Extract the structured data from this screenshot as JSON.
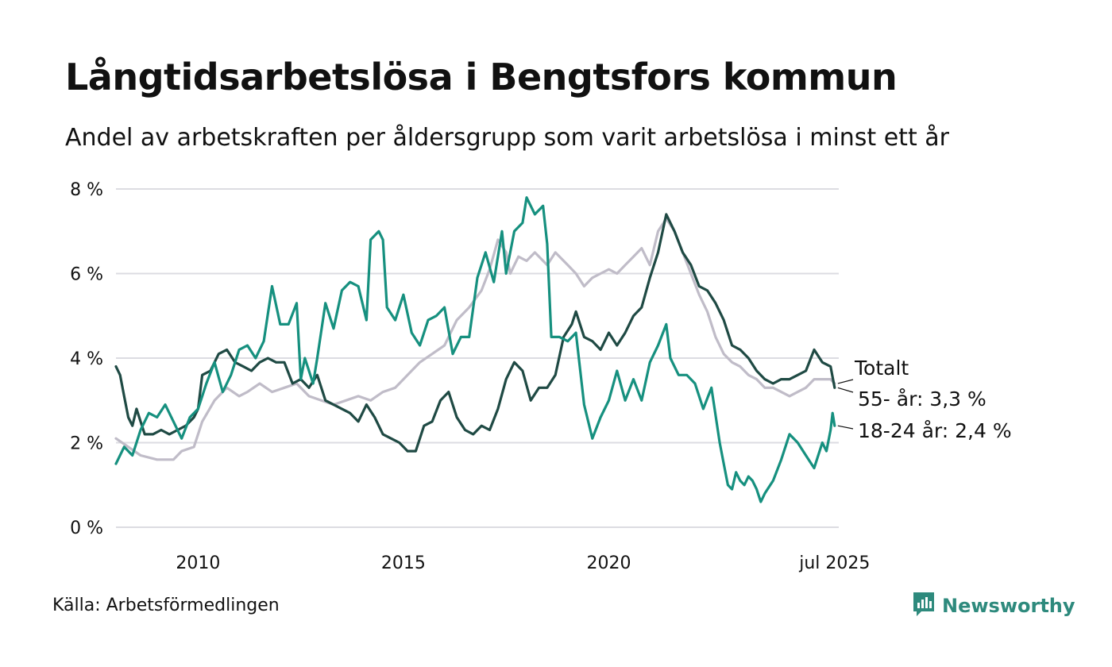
{
  "header": {
    "title": "Långtidsarbetslösa i Bengtsfors kommun",
    "subtitle": "Andel av arbetskraften per åldersgrupp som varit arbetslösa i minst ett år"
  },
  "footer": {
    "source": "Källa: Arbetsförmedlingen",
    "brand": "Newsworthy"
  },
  "colors": {
    "total": "#c0bcc8",
    "age55": "#1f4a44",
    "age18_24": "#16907f",
    "grid": "#dcdce2",
    "brand": "#2e8a7d"
  },
  "chart_data": {
    "type": "line",
    "title": "Långtidsarbetslösa i Bengtsfors kommun",
    "subtitle": "Andel av arbetskraften per åldersgrupp som varit arbetslösa i minst ett år",
    "xlabel": "",
    "ylabel": "",
    "x_range": [
      2008.0,
      2025.6
    ],
    "ylim": [
      0,
      8
    ],
    "y_ticks": [
      0,
      2,
      4,
      6,
      8
    ],
    "y_tick_labels": [
      "0 %",
      "2 %",
      "4 %",
      "6 %",
      "8 %"
    ],
    "x_ticks": [
      2010,
      2015,
      2020,
      2025.5
    ],
    "x_tick_labels": [
      "2010",
      "2015",
      "2020",
      "jul 2025"
    ],
    "grid": true,
    "series": [
      {
        "name": "Totalt",
        "label": "Totalt",
        "color": "#c0bcc8",
        "points": [
          [
            2008.0,
            2.1
          ],
          [
            2008.3,
            1.9
          ],
          [
            2008.6,
            1.7
          ],
          [
            2009.0,
            1.6
          ],
          [
            2009.4,
            1.6
          ],
          [
            2009.6,
            1.8
          ],
          [
            2009.9,
            1.9
          ],
          [
            2010.1,
            2.5
          ],
          [
            2010.4,
            3.0
          ],
          [
            2010.7,
            3.3
          ],
          [
            2011.0,
            3.1
          ],
          [
            2011.2,
            3.2
          ],
          [
            2011.5,
            3.4
          ],
          [
            2011.8,
            3.2
          ],
          [
            2012.1,
            3.3
          ],
          [
            2012.4,
            3.4
          ],
          [
            2012.7,
            3.1
          ],
          [
            2013.0,
            3.0
          ],
          [
            2013.3,
            2.9
          ],
          [
            2013.6,
            3.0
          ],
          [
            2013.9,
            3.1
          ],
          [
            2014.2,
            3.0
          ],
          [
            2014.5,
            3.2
          ],
          [
            2014.8,
            3.3
          ],
          [
            2015.1,
            3.6
          ],
          [
            2015.4,
            3.9
          ],
          [
            2015.7,
            4.1
          ],
          [
            2016.0,
            4.3
          ],
          [
            2016.3,
            4.9
          ],
          [
            2016.6,
            5.2
          ],
          [
            2016.9,
            5.6
          ],
          [
            2017.1,
            6.1
          ],
          [
            2017.3,
            6.8
          ],
          [
            2017.5,
            6.5
          ],
          [
            2017.6,
            6.0
          ],
          [
            2017.8,
            6.4
          ],
          [
            2018.0,
            6.3
          ],
          [
            2018.2,
            6.5
          ],
          [
            2018.5,
            6.2
          ],
          [
            2018.7,
            6.5
          ],
          [
            2019.0,
            6.2
          ],
          [
            2019.2,
            6.0
          ],
          [
            2019.4,
            5.7
          ],
          [
            2019.6,
            5.9
          ],
          [
            2019.8,
            6.0
          ],
          [
            2020.0,
            6.1
          ],
          [
            2020.2,
            6.0
          ],
          [
            2020.4,
            6.2
          ],
          [
            2020.6,
            6.4
          ],
          [
            2020.8,
            6.6
          ],
          [
            2021.0,
            6.2
          ],
          [
            2021.2,
            7.0
          ],
          [
            2021.4,
            7.3
          ],
          [
            2021.6,
            7.0
          ],
          [
            2021.8,
            6.5
          ],
          [
            2022.0,
            6.0
          ],
          [
            2022.2,
            5.5
          ],
          [
            2022.4,
            5.1
          ],
          [
            2022.6,
            4.5
          ],
          [
            2022.8,
            4.1
          ],
          [
            2023.0,
            3.9
          ],
          [
            2023.2,
            3.8
          ],
          [
            2023.4,
            3.6
          ],
          [
            2023.6,
            3.5
          ],
          [
            2023.8,
            3.3
          ],
          [
            2024.0,
            3.3
          ],
          [
            2024.2,
            3.2
          ],
          [
            2024.4,
            3.1
          ],
          [
            2024.6,
            3.2
          ],
          [
            2024.8,
            3.3
          ],
          [
            2025.0,
            3.5
          ],
          [
            2025.2,
            3.5
          ],
          [
            2025.4,
            3.5
          ],
          [
            2025.5,
            3.4
          ]
        ]
      },
      {
        "name": "55- år",
        "label": "55- år: 3,3 %",
        "color": "#1f4a44",
        "last_value": 3.3,
        "points": [
          [
            2008.0,
            3.8
          ],
          [
            2008.1,
            3.6
          ],
          [
            2008.2,
            3.1
          ],
          [
            2008.3,
            2.6
          ],
          [
            2008.4,
            2.4
          ],
          [
            2008.5,
            2.8
          ],
          [
            2008.6,
            2.5
          ],
          [
            2008.7,
            2.2
          ],
          [
            2008.9,
            2.2
          ],
          [
            2009.1,
            2.3
          ],
          [
            2009.3,
            2.2
          ],
          [
            2009.5,
            2.3
          ],
          [
            2009.7,
            2.4
          ],
          [
            2009.9,
            2.6
          ],
          [
            2010.0,
            2.8
          ],
          [
            2010.1,
            3.6
          ],
          [
            2010.3,
            3.7
          ],
          [
            2010.5,
            4.1
          ],
          [
            2010.7,
            4.2
          ],
          [
            2010.9,
            3.9
          ],
          [
            2011.1,
            3.8
          ],
          [
            2011.3,
            3.7
          ],
          [
            2011.5,
            3.9
          ],
          [
            2011.7,
            4.0
          ],
          [
            2011.9,
            3.9
          ],
          [
            2012.1,
            3.9
          ],
          [
            2012.3,
            3.4
          ],
          [
            2012.5,
            3.5
          ],
          [
            2012.7,
            3.3
          ],
          [
            2012.9,
            3.6
          ],
          [
            2013.1,
            3.0
          ],
          [
            2013.3,
            2.9
          ],
          [
            2013.5,
            2.8
          ],
          [
            2013.7,
            2.7
          ],
          [
            2013.9,
            2.5
          ],
          [
            2014.1,
            2.9
          ],
          [
            2014.3,
            2.6
          ],
          [
            2014.5,
            2.2
          ],
          [
            2014.7,
            2.1
          ],
          [
            2014.9,
            2.0
          ],
          [
            2015.1,
            1.8
          ],
          [
            2015.3,
            1.8
          ],
          [
            2015.5,
            2.4
          ],
          [
            2015.7,
            2.5
          ],
          [
            2015.9,
            3.0
          ],
          [
            2016.1,
            3.2
          ],
          [
            2016.3,
            2.6
          ],
          [
            2016.5,
            2.3
          ],
          [
            2016.7,
            2.2
          ],
          [
            2016.9,
            2.4
          ],
          [
            2017.1,
            2.3
          ],
          [
            2017.3,
            2.8
          ],
          [
            2017.5,
            3.5
          ],
          [
            2017.7,
            3.9
          ],
          [
            2017.9,
            3.7
          ],
          [
            2018.1,
            3.0
          ],
          [
            2018.3,
            3.3
          ],
          [
            2018.5,
            3.3
          ],
          [
            2018.7,
            3.6
          ],
          [
            2018.9,
            4.5
          ],
          [
            2019.1,
            4.8
          ],
          [
            2019.2,
            5.1
          ],
          [
            2019.4,
            4.5
          ],
          [
            2019.6,
            4.4
          ],
          [
            2019.8,
            4.2
          ],
          [
            2020.0,
            4.6
          ],
          [
            2020.2,
            4.3
          ],
          [
            2020.4,
            4.6
          ],
          [
            2020.6,
            5.0
          ],
          [
            2020.8,
            5.2
          ],
          [
            2021.0,
            5.9
          ],
          [
            2021.2,
            6.5
          ],
          [
            2021.4,
            7.4
          ],
          [
            2021.6,
            7.0
          ],
          [
            2021.8,
            6.5
          ],
          [
            2022.0,
            6.2
          ],
          [
            2022.2,
            5.7
          ],
          [
            2022.4,
            5.6
          ],
          [
            2022.6,
            5.3
          ],
          [
            2022.8,
            4.9
          ],
          [
            2023.0,
            4.3
          ],
          [
            2023.2,
            4.2
          ],
          [
            2023.4,
            4.0
          ],
          [
            2023.6,
            3.7
          ],
          [
            2023.8,
            3.5
          ],
          [
            2024.0,
            3.4
          ],
          [
            2024.2,
            3.5
          ],
          [
            2024.4,
            3.5
          ],
          [
            2024.6,
            3.6
          ],
          [
            2024.8,
            3.7
          ],
          [
            2025.0,
            4.2
          ],
          [
            2025.2,
            3.9
          ],
          [
            2025.4,
            3.8
          ],
          [
            2025.5,
            3.3
          ]
        ]
      },
      {
        "name": "18-24 år",
        "label": "18-24 år: 2,4 %",
        "color": "#16907f",
        "last_value": 2.4,
        "points": [
          [
            2008.0,
            1.5
          ],
          [
            2008.2,
            1.9
          ],
          [
            2008.4,
            1.7
          ],
          [
            2008.6,
            2.3
          ],
          [
            2008.8,
            2.7
          ],
          [
            2009.0,
            2.6
          ],
          [
            2009.2,
            2.9
          ],
          [
            2009.4,
            2.5
          ],
          [
            2009.6,
            2.1
          ],
          [
            2009.8,
            2.6
          ],
          [
            2010.0,
            2.8
          ],
          [
            2010.2,
            3.4
          ],
          [
            2010.4,
            3.9
          ],
          [
            2010.6,
            3.2
          ],
          [
            2010.8,
            3.6
          ],
          [
            2011.0,
            4.2
          ],
          [
            2011.2,
            4.3
          ],
          [
            2011.4,
            4.0
          ],
          [
            2011.6,
            4.4
          ],
          [
            2011.8,
            5.7
          ],
          [
            2012.0,
            4.8
          ],
          [
            2012.2,
            4.8
          ],
          [
            2012.4,
            5.3
          ],
          [
            2012.5,
            3.5
          ],
          [
            2012.6,
            4.0
          ],
          [
            2012.8,
            3.4
          ],
          [
            2012.9,
            4.0
          ],
          [
            2013.1,
            5.3
          ],
          [
            2013.3,
            4.7
          ],
          [
            2013.5,
            5.6
          ],
          [
            2013.7,
            5.8
          ],
          [
            2013.9,
            5.7
          ],
          [
            2014.1,
            4.9
          ],
          [
            2014.2,
            6.8
          ],
          [
            2014.4,
            7.0
          ],
          [
            2014.5,
            6.8
          ],
          [
            2014.6,
            5.2
          ],
          [
            2014.8,
            4.9
          ],
          [
            2015.0,
            5.5
          ],
          [
            2015.2,
            4.6
          ],
          [
            2015.4,
            4.3
          ],
          [
            2015.6,
            4.9
          ],
          [
            2015.8,
            5.0
          ],
          [
            2016.0,
            5.2
          ],
          [
            2016.2,
            4.1
          ],
          [
            2016.4,
            4.5
          ],
          [
            2016.6,
            4.5
          ],
          [
            2016.8,
            5.9
          ],
          [
            2017.0,
            6.5
          ],
          [
            2017.2,
            5.8
          ],
          [
            2017.4,
            7.0
          ],
          [
            2017.5,
            6.0
          ],
          [
            2017.7,
            7.0
          ],
          [
            2017.9,
            7.2
          ],
          [
            2018.0,
            7.8
          ],
          [
            2018.2,
            7.4
          ],
          [
            2018.4,
            7.6
          ],
          [
            2018.5,
            6.7
          ],
          [
            2018.6,
            4.5
          ],
          [
            2018.8,
            4.5
          ],
          [
            2019.0,
            4.4
          ],
          [
            2019.2,
            4.6
          ],
          [
            2019.4,
            2.9
          ],
          [
            2019.6,
            2.1
          ],
          [
            2019.8,
            2.6
          ],
          [
            2020.0,
            3.0
          ],
          [
            2020.2,
            3.7
          ],
          [
            2020.4,
            3.0
          ],
          [
            2020.6,
            3.5
          ],
          [
            2020.8,
            3.0
          ],
          [
            2021.0,
            3.9
          ],
          [
            2021.2,
            4.3
          ],
          [
            2021.4,
            4.8
          ],
          [
            2021.5,
            4.0
          ],
          [
            2021.7,
            3.6
          ],
          [
            2021.9,
            3.6
          ],
          [
            2022.1,
            3.4
          ],
          [
            2022.3,
            2.8
          ],
          [
            2022.5,
            3.3
          ],
          [
            2022.7,
            2.0
          ],
          [
            2022.8,
            1.5
          ],
          [
            2022.9,
            1.0
          ],
          [
            2023.0,
            0.9
          ],
          [
            2023.1,
            1.3
          ],
          [
            2023.2,
            1.1
          ],
          [
            2023.3,
            1.0
          ],
          [
            2023.4,
            1.2
          ],
          [
            2023.5,
            1.1
          ],
          [
            2023.6,
            0.9
          ],
          [
            2023.7,
            0.6
          ],
          [
            2023.8,
            0.8
          ],
          [
            2024.0,
            1.1
          ],
          [
            2024.2,
            1.6
          ],
          [
            2024.4,
            2.2
          ],
          [
            2024.6,
            2.0
          ],
          [
            2024.8,
            1.7
          ],
          [
            2025.0,
            1.4
          ],
          [
            2025.2,
            2.0
          ],
          [
            2025.3,
            1.8
          ],
          [
            2025.4,
            2.3
          ],
          [
            2025.45,
            2.7
          ],
          [
            2025.5,
            2.4
          ]
        ]
      }
    ]
  }
}
